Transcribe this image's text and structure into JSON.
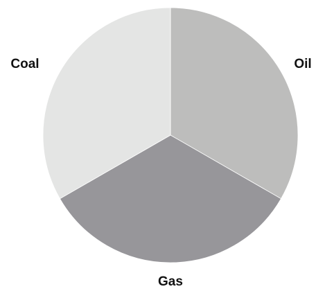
{
  "chart_data": {
    "type": "pie",
    "title": "",
    "slices": [
      {
        "label": "Oil",
        "value": 33.3,
        "color": "#bdbdbc"
      },
      {
        "label": "Gas",
        "value": 33.4,
        "color": "#97969a"
      },
      {
        "label": "Coal",
        "value": 33.3,
        "color": "#e4e5e4"
      }
    ],
    "start_angle_deg": 0,
    "direction": "clockwise",
    "legend": "none"
  }
}
